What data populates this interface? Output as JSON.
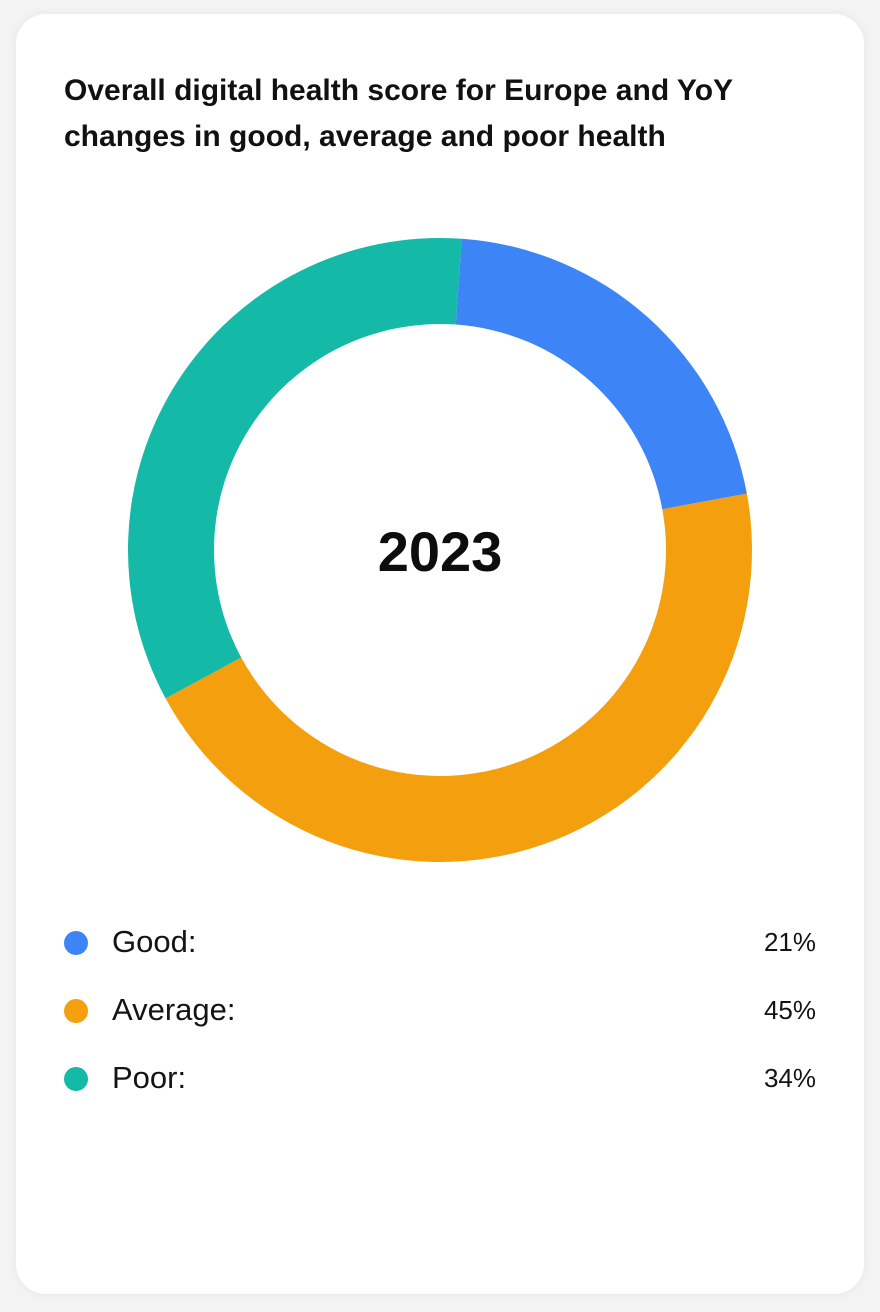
{
  "chart_data": {
    "type": "pie",
    "title": "Overall digital health score for Europe and YoY changes in good, average and poor health",
    "center_label": "2023",
    "unit": "%",
    "slices": [
      {
        "label": "Good:",
        "value": 21,
        "value_label": "21%",
        "color": "#3d85f6"
      },
      {
        "label": "Average:",
        "value": 45,
        "value_label": "45%",
        "color": "#f49f0e"
      },
      {
        "label": "Poor:",
        "value": 34,
        "value_label": "34%",
        "color": "#15b9a8"
      }
    ]
  }
}
